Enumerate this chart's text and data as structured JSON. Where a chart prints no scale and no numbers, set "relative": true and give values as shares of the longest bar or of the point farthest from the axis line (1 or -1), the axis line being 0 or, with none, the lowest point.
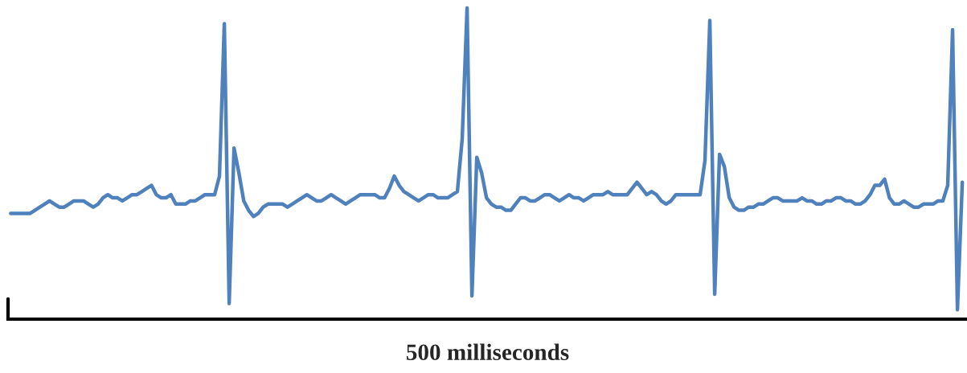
{
  "chart_data": {
    "type": "line",
    "relative": true,
    "xlabel": "500 milliseconds",
    "grid": false,
    "categories": [
      null,
      null,
      null,
      null,
      null,
      null,
      null,
      null,
      null,
      null,
      null,
      null,
      null,
      null,
      null,
      null,
      null,
      null,
      null,
      null,
      null,
      null,
      null,
      null,
      null,
      null,
      null,
      null,
      null,
      null,
      null,
      null,
      null,
      null,
      null,
      null,
      null,
      null,
      null,
      null,
      null,
      null,
      null,
      null,
      null,
      null,
      null,
      null,
      null,
      null,
      null,
      null,
      null,
      null,
      null,
      null,
      null,
      null,
      null,
      null,
      null,
      null,
      null,
      null,
      null,
      null,
      null,
      null,
      null,
      null,
      null,
      null,
      null,
      null,
      null,
      null,
      null,
      null,
      null,
      null,
      null,
      null,
      null,
      null,
      null,
      null,
      null,
      null,
      null,
      null,
      null,
      null,
      null,
      null,
      null,
      null,
      null,
      null,
      null,
      null,
      null,
      null,
      null,
      null,
      null,
      null,
      null,
      null,
      null,
      null,
      null,
      null,
      null,
      null,
      null,
      null,
      null,
      null,
      null,
      null,
      null,
      null,
      null,
      null,
      null,
      null,
      null,
      null,
      null,
      null,
      null,
      null,
      null,
      null,
      null,
      null,
      null,
      null,
      null,
      null,
      null,
      null,
      null,
      null,
      null,
      null,
      null,
      null,
      null,
      null,
      null,
      null,
      null,
      null,
      null,
      null,
      null,
      null,
      null,
      null,
      null,
      null,
      null,
      null,
      null,
      null,
      null,
      null,
      null,
      null,
      null,
      null,
      null,
      null,
      null,
      null,
      null,
      null,
      null,
      null,
      null,
      null,
      null,
      null,
      null,
      null,
      null,
      null,
      null,
      null,
      null,
      null,
      null,
      null,
      null,
      null,
      null
    ],
    "series": [
      {
        "color": "#4f81bd",
        "values": [
          0.34,
          0.34,
          0.34,
          0.34,
          0.34,
          0.35,
          0.36,
          0.37,
          0.38,
          0.37,
          0.36,
          0.36,
          0.37,
          0.38,
          0.38,
          0.38,
          0.37,
          0.36,
          0.37,
          0.39,
          0.4,
          0.39,
          0.39,
          0.38,
          0.39,
          0.4,
          0.4,
          0.41,
          0.42,
          0.43,
          0.4,
          0.39,
          0.39,
          0.4,
          0.37,
          0.37,
          0.37,
          0.38,
          0.38,
          0.39,
          0.4,
          0.4,
          0.4,
          0.46,
          0.95,
          0.05,
          0.55,
          0.47,
          0.38,
          0.35,
          0.33,
          0.34,
          0.36,
          0.37,
          0.37,
          0.37,
          0.37,
          0.36,
          0.37,
          0.38,
          0.39,
          0.4,
          0.39,
          0.38,
          0.38,
          0.39,
          0.4,
          0.39,
          0.38,
          0.37,
          0.38,
          0.39,
          0.4,
          0.4,
          0.4,
          0.4,
          0.39,
          0.39,
          0.42,
          0.46,
          0.43,
          0.41,
          0.4,
          0.39,
          0.38,
          0.39,
          0.4,
          0.4,
          0.39,
          0.39,
          0.39,
          0.4,
          0.41,
          0.58,
          1.0,
          0.075,
          0.52,
          0.47,
          0.39,
          0.37,
          0.36,
          0.36,
          0.35,
          0.35,
          0.37,
          0.39,
          0.39,
          0.38,
          0.38,
          0.39,
          0.4,
          0.4,
          0.39,
          0.38,
          0.39,
          0.4,
          0.39,
          0.39,
          0.38,
          0.39,
          0.4,
          0.4,
          0.4,
          0.41,
          0.4,
          0.4,
          0.4,
          0.4,
          0.42,
          0.44,
          0.42,
          0.4,
          0.41,
          0.4,
          0.38,
          0.37,
          0.38,
          0.4,
          0.4,
          0.4,
          0.4,
          0.4,
          0.4,
          0.51,
          0.96,
          0.08,
          0.53,
          0.49,
          0.39,
          0.36,
          0.35,
          0.35,
          0.36,
          0.36,
          0.37,
          0.37,
          0.38,
          0.39,
          0.39,
          0.38,
          0.38,
          0.38,
          0.38,
          0.39,
          0.38,
          0.38,
          0.37,
          0.37,
          0.38,
          0.38,
          0.39,
          0.39,
          0.38,
          0.38,
          0.37,
          0.37,
          0.38,
          0.4,
          0.43,
          0.43,
          0.45,
          0.39,
          0.37,
          0.37,
          0.38,
          0.37,
          0.36,
          0.36,
          0.37,
          0.37,
          0.37,
          0.38,
          0.38,
          0.43,
          0.93,
          0.03,
          0.44
        ]
      }
    ]
  }
}
